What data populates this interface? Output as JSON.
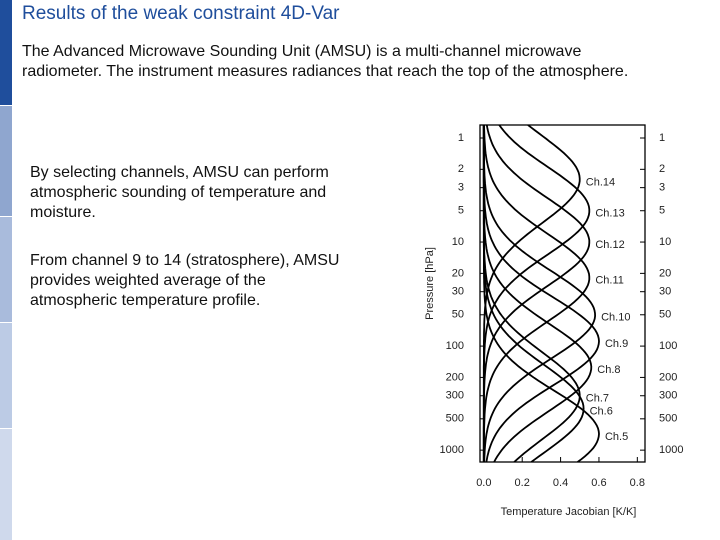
{
  "slide": {
    "title": "Results of the weak constraint 4D-Var",
    "intro_lines": [
      "The Advanced Microwave Sounding Unit (AMSU) is a multi-channel microwave",
      "radiometer. The instrument measures radiances that reach the top of the atmosphere."
    ],
    "points": [
      [
        "By selecting channels, AMSU can perform",
        "atmospheric sounding of temperature and",
        "moisture."
      ],
      [
        "From channel 9 to 14 (stratosphere), AMSU",
        "provides weighted average of the",
        "atmospheric temperature profile."
      ]
    ]
  },
  "chart_data": {
    "type": "line",
    "xlabel": "Temperature Jacobian [K/K]",
    "ylabel": "Pressure [hPa]",
    "xlim": [
      -0.02,
      0.84
    ],
    "xticks": [
      {
        "value": 0,
        "label": "0.0"
      },
      0.2,
      0.4,
      0.6,
      0.8
    ],
    "ylim": [
      0.75,
      1300
    ],
    "log_y": true,
    "y_inverted": true,
    "yticks": [
      1,
      2,
      3,
      5,
      10,
      20,
      30,
      50,
      100,
      200,
      300,
      500,
      1000
    ],
    "color": "#000000",
    "series": [
      {
        "name": "Ch.14",
        "peak_pressure": 2.5,
        "peak_value": 0.5
      },
      {
        "name": "Ch.13",
        "peak_pressure": 5,
        "peak_value": 0.55
      },
      {
        "name": "Ch.12",
        "peak_pressure": 10,
        "peak_value": 0.55
      },
      {
        "name": "Ch.11",
        "peak_pressure": 22,
        "peak_value": 0.55
      },
      {
        "name": "Ch.10",
        "peak_pressure": 50,
        "peak_value": 0.58
      },
      {
        "name": "Ch.9",
        "peak_pressure": 90,
        "peak_value": 0.6
      },
      {
        "name": "Ch.8",
        "peak_pressure": 160,
        "peak_value": 0.56
      },
      {
        "name": "Ch.7",
        "peak_pressure": 300,
        "peak_value": 0.5
      },
      {
        "name": "Ch.6",
        "peak_pressure": 400,
        "peak_value": 0.52
      },
      {
        "name": "Ch.5",
        "peak_pressure": 700,
        "peak_value": 0.6
      }
    ]
  }
}
